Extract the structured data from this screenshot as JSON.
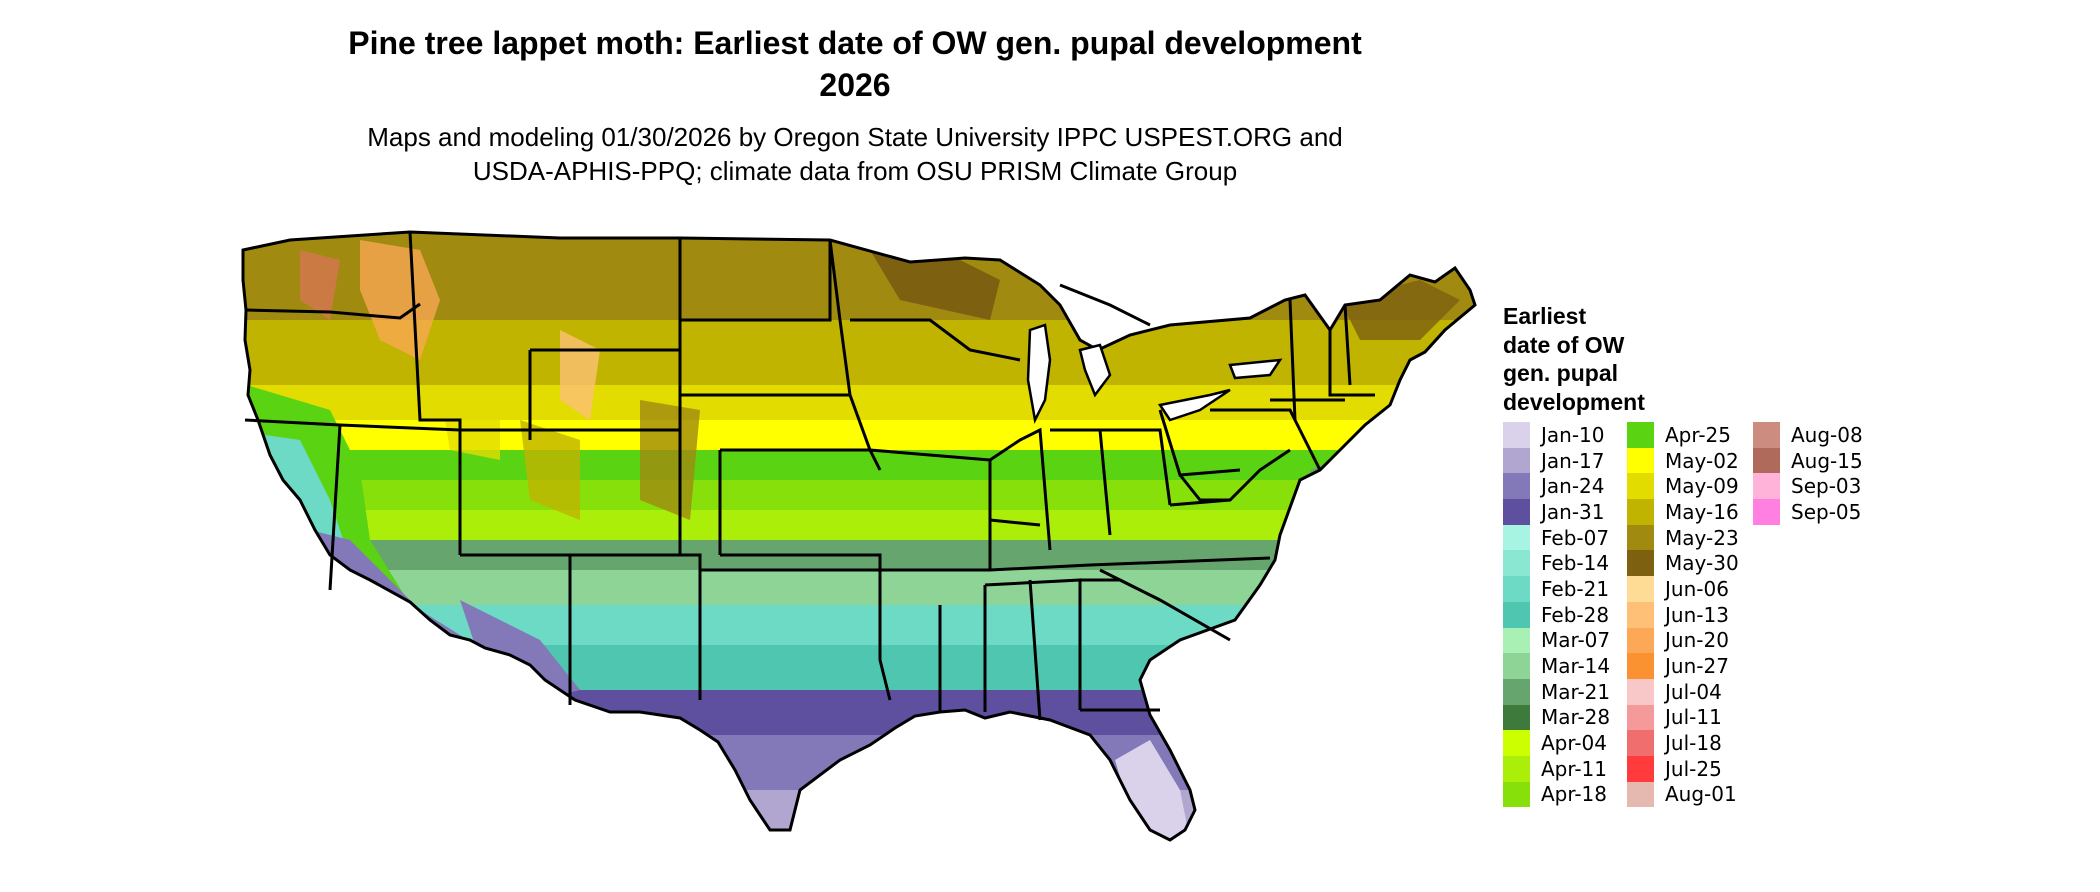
{
  "title_line1": "Pine tree lappet moth: Earliest date of OW gen. pupal development",
  "title_line2": "2026",
  "subtitle_line1": "Maps and modeling 01/30/2026 by Oregon State University IPPC USPEST.ORG and",
  "subtitle_line2": "USDA-APHIS-PPQ; climate data from OSU PRISM Climate Group",
  "legend": {
    "title_lines": [
      "Earliest",
      "date of OW",
      "gen. pupal",
      "development"
    ],
    "items": [
      {
        "label": "Jan-10",
        "color": "#d9d2ea"
      },
      {
        "label": "Jan-17",
        "color": "#b0a6d0"
      },
      {
        "label": "Jan-24",
        "color": "#8479b8"
      },
      {
        "label": "Jan-31",
        "color": "#5e509e"
      },
      {
        "label": "Feb-07",
        "color": "#a8f4e2"
      },
      {
        "label": "Feb-14",
        "color": "#8ae8d2"
      },
      {
        "label": "Feb-21",
        "color": "#6cdac4"
      },
      {
        "label": "Feb-28",
        "color": "#4fc7b0"
      },
      {
        "label": "Mar-07",
        "color": "#a9f0b5"
      },
      {
        "label": "Mar-14",
        "color": "#8fd497"
      },
      {
        "label": "Mar-21",
        "color": "#66a56e"
      },
      {
        "label": "Mar-28",
        "color": "#3e7a3c"
      },
      {
        "label": "Apr-04",
        "color": "#ccff00"
      },
      {
        "label": "Apr-11",
        "color": "#aaee0a"
      },
      {
        "label": "Apr-18",
        "color": "#88e00a"
      },
      {
        "label": "Apr-25",
        "color": "#5ad312"
      },
      {
        "label": "May-02",
        "color": "#ffff00"
      },
      {
        "label": "May-09",
        "color": "#e2dc00"
      },
      {
        "label": "May-16",
        "color": "#c1b400"
      },
      {
        "label": "May-23",
        "color": "#a08a10"
      },
      {
        "label": "May-30",
        "color": "#7d6010"
      },
      {
        "label": "Jun-06",
        "color": "#fedc96"
      },
      {
        "label": "Jun-13",
        "color": "#fdc076"
      },
      {
        "label": "Jun-20",
        "color": "#fca856"
      },
      {
        "label": "Jun-27",
        "color": "#fb9232"
      },
      {
        "label": "Jul-04",
        "color": "#f8c8c8"
      },
      {
        "label": "Jul-11",
        "color": "#f49a9a"
      },
      {
        "label": "Jul-18",
        "color": "#f06e6e"
      },
      {
        "label": "Jul-25",
        "color": "#ff3b3b"
      },
      {
        "label": "Aug-01",
        "color": "#e6b9b0"
      },
      {
        "label": "Aug-08",
        "color": "#cc8c80"
      },
      {
        "label": "Aug-15",
        "color": "#b06a5c"
      },
      {
        "label": "Sep-03",
        "color": "#ffb3d9"
      },
      {
        "label": "Sep-05",
        "color": "#ff80e0"
      }
    ]
  }
}
